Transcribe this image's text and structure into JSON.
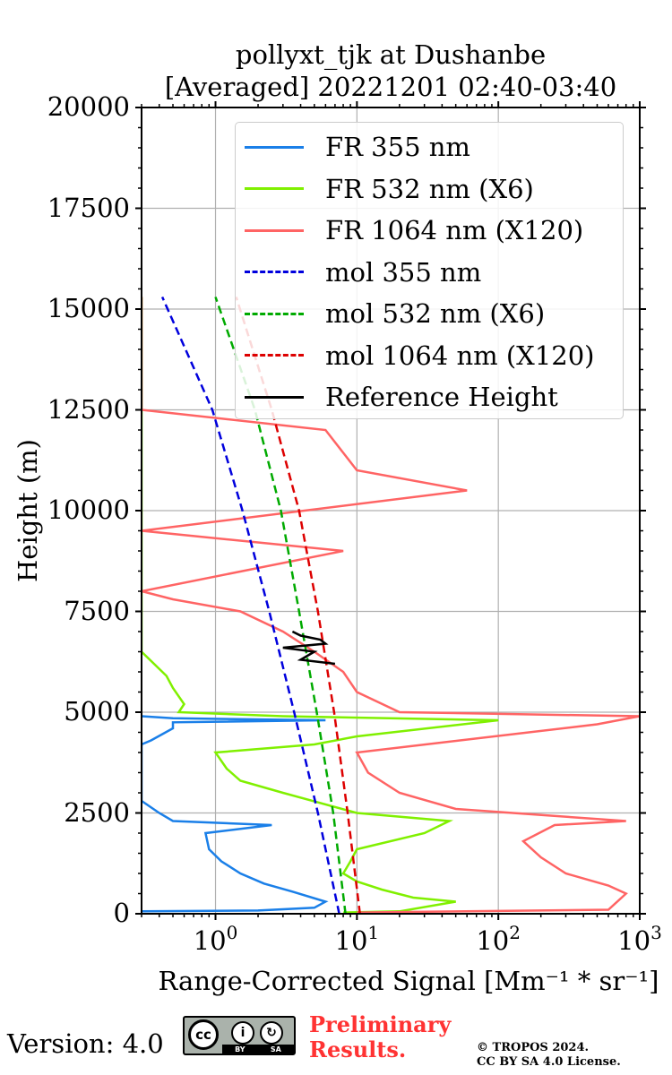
{
  "title_line1": "pollyxt_tjk at Dushanbe",
  "title_line2": "[Averaged] 20221201 02:40-03:40",
  "footer": {
    "version": "Version: 4.0",
    "preliminary_line1": "Preliminary",
    "preliminary_line2": "Results.",
    "copyright_line1": "© TROPOS 2024.",
    "copyright_line2": "CC BY SA 4.0 License."
  },
  "chart_data": {
    "type": "line",
    "xlabel": "Range-Corrected Signal [Mm⁻¹ * sr⁻¹]",
    "ylabel": "Height (m)",
    "xscale": "log",
    "xlim": [
      0.3,
      1000
    ],
    "ylim": [
      0,
      20000
    ],
    "yticks": [
      "0",
      "2500",
      "5000",
      "7500",
      "10000",
      "12500",
      "15000",
      "17500",
      "20000"
    ],
    "xticks": [
      {
        "base": "10",
        "exp": "0",
        "value": 1
      },
      {
        "base": "10",
        "exp": "1",
        "value": 10
      },
      {
        "base": "10",
        "exp": "2",
        "value": 100
      },
      {
        "base": "10",
        "exp": "3",
        "value": 1000
      }
    ],
    "grid": true,
    "legend_position": "top-right",
    "series": [
      {
        "name": "FR 355 nm",
        "color": "#1a7fe8",
        "style": "solid",
        "points": [
          [
            0.3,
            60
          ],
          [
            2,
            80
          ],
          [
            5,
            150
          ],
          [
            6,
            300
          ],
          [
            3.5,
            550
          ],
          [
            2.2,
            750
          ],
          [
            1.5,
            1000
          ],
          [
            1.1,
            1300
          ],
          [
            0.9,
            1600
          ],
          [
            0.85,
            2000
          ],
          [
            2.5,
            2200
          ],
          [
            0.5,
            2300
          ],
          [
            0.4,
            2500
          ],
          [
            0.3,
            2800
          ],
          [
            0.3,
            3500
          ],
          [
            0.3,
            4200
          ],
          [
            0.35,
            4300
          ],
          [
            0.5,
            4600
          ],
          [
            0.5,
            4750
          ],
          [
            6,
            4800
          ],
          [
            0.5,
            4850
          ],
          [
            0.3,
            4900
          ]
        ]
      },
      {
        "name": "FR 532 nm (X6)",
        "color": "#80f000",
        "style": "solid",
        "points": [
          [
            8,
            30
          ],
          [
            20,
            60
          ],
          [
            50,
            300
          ],
          [
            25,
            400
          ],
          [
            15,
            600
          ],
          [
            10,
            800
          ],
          [
            8,
            1000
          ],
          [
            9,
            1300
          ],
          [
            10,
            1600
          ],
          [
            30,
            2000
          ],
          [
            45,
            2300
          ],
          [
            10,
            2500
          ],
          [
            3,
            3000
          ],
          [
            1.5,
            3300
          ],
          [
            1.2,
            3600
          ],
          [
            1,
            4000
          ],
          [
            5,
            4200
          ],
          [
            10,
            4400
          ],
          [
            100,
            4800
          ],
          [
            3,
            4900
          ],
          [
            0.55,
            5000
          ],
          [
            0.6,
            5200
          ],
          [
            0.5,
            5600
          ],
          [
            0.45,
            5900
          ],
          [
            0.3,
            6500
          ],
          [
            0.3,
            7500
          ],
          [
            0.3,
            8500
          ],
          [
            0.3,
            10000
          ],
          [
            0.3,
            11000
          ],
          [
            0.3,
            13000
          ],
          [
            0.3,
            14500
          ],
          [
            0.3,
            15300
          ]
        ]
      },
      {
        "name": "FR 1064 nm (X120)",
        "color": "#ff6464",
        "style": "solid",
        "points": [
          [
            10,
            30
          ],
          [
            600,
            100
          ],
          [
            800,
            500
          ],
          [
            600,
            700
          ],
          [
            300,
            1000
          ],
          [
            200,
            1400
          ],
          [
            150,
            1800
          ],
          [
            250,
            2200
          ],
          [
            800,
            2300
          ],
          [
            50,
            2600
          ],
          [
            20,
            3000
          ],
          [
            12,
            3500
          ],
          [
            10,
            4000
          ],
          [
            500,
            4700
          ],
          [
            1000,
            4900
          ],
          [
            20,
            5000
          ],
          [
            10,
            5500
          ],
          [
            8,
            6000
          ],
          [
            5,
            6500
          ],
          [
            3,
            7000
          ],
          [
            1.5,
            7500
          ],
          [
            0.5,
            7800
          ],
          [
            0.3,
            8000
          ],
          [
            8,
            9000
          ],
          [
            0.3,
            9500
          ],
          [
            60,
            10500
          ],
          [
            10,
            11000
          ],
          [
            6,
            12000
          ],
          [
            0.3,
            12500
          ],
          [
            0.3,
            13500
          ],
          [
            0.3,
            14500
          ],
          [
            0.3,
            15300
          ]
        ]
      },
      {
        "name": "mol 355 nm",
        "color": "#0000dd",
        "style": "dashed",
        "points": [
          [
            7.5,
            0
          ],
          [
            5.3,
            2500
          ],
          [
            3.6,
            5000
          ],
          [
            2.4,
            7500
          ],
          [
            1.55,
            10000
          ],
          [
            0.95,
            12500
          ],
          [
            0.42,
            15300
          ]
        ]
      },
      {
        "name": "mol 532 nm (X6)",
        "color": "#00aa00",
        "style": "dashed",
        "points": [
          [
            8.3,
            0
          ],
          [
            6.8,
            2500
          ],
          [
            5.2,
            5000
          ],
          [
            3.9,
            7500
          ],
          [
            2.9,
            10000
          ],
          [
            1.9,
            12500
          ],
          [
            1.0,
            15300
          ]
        ]
      },
      {
        "name": "mol 1064 nm (X120)",
        "color": "#dd0000",
        "style": "dashed",
        "points": [
          [
            10.5,
            0
          ],
          [
            8.6,
            2500
          ],
          [
            6.9,
            5000
          ],
          [
            5.3,
            7500
          ],
          [
            3.9,
            10000
          ],
          [
            2.5,
            12500
          ],
          [
            1.4,
            15300
          ]
        ]
      },
      {
        "name": "Reference Height",
        "color": "#000000",
        "style": "solid",
        "points": [
          [
            7,
            6200
          ],
          [
            4,
            6300
          ],
          [
            5,
            6500
          ],
          [
            3,
            6600
          ],
          [
            6,
            6700
          ],
          [
            5.5,
            6800
          ],
          [
            4,
            6900
          ],
          [
            3.5,
            7000
          ]
        ]
      }
    ]
  }
}
